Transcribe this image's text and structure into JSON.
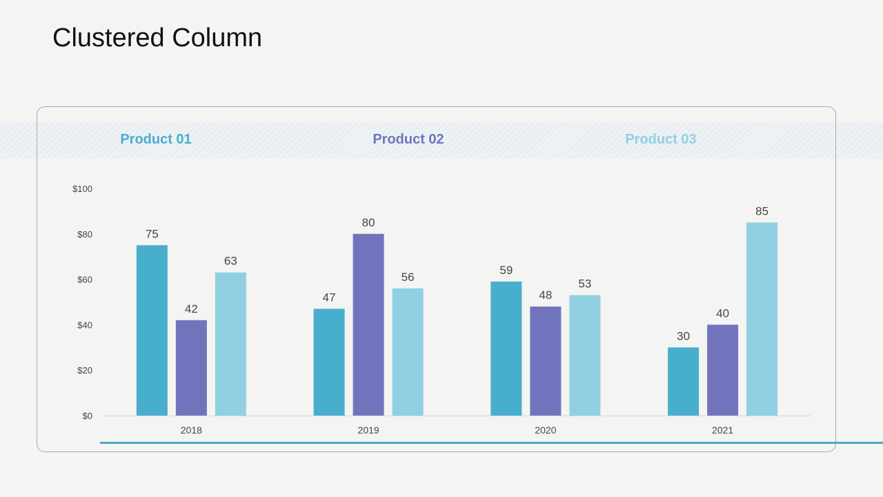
{
  "slide": {
    "title": "Clustered Column"
  },
  "colors": {
    "product01": "#48aecd",
    "product02": "#7174bd",
    "product03": "#90d0e2",
    "axis_text": "#444444",
    "label_text": "#444444"
  },
  "chart_data": {
    "type": "bar",
    "title": "",
    "xlabel": "",
    "ylabel": "",
    "categories": [
      "2018",
      "2019",
      "2020",
      "2021"
    ],
    "series": [
      {
        "name": "Product 01",
        "values": [
          75,
          47,
          59,
          30
        ]
      },
      {
        "name": "Product 02",
        "values": [
          42,
          80,
          48,
          40
        ]
      },
      {
        "name": "Product 03",
        "values": [
          63,
          56,
          53,
          85
        ]
      }
    ],
    "ylim": [
      0,
      100
    ],
    "yticks": [
      0,
      20,
      40,
      60,
      80,
      100
    ],
    "ytick_labels": [
      "$0",
      "$20",
      "$40",
      "$60",
      "$80",
      "$100"
    ],
    "legend_position": "top",
    "data_labels": true,
    "grid": false
  }
}
